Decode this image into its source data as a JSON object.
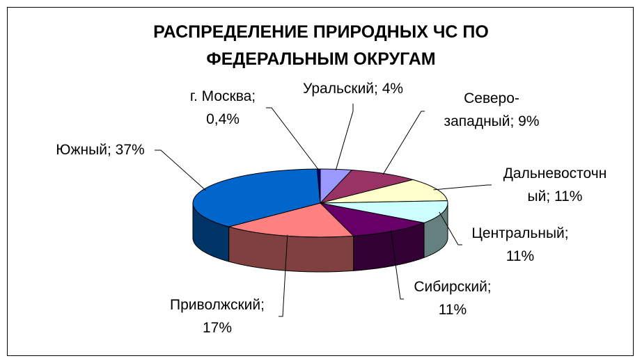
{
  "chart_data": {
    "type": "pie",
    "title_lines": [
      "РАСПРЕДЕЛЕНИЕ ПРИРОДНЫХ ЧС ПО",
      "ФЕДЕРАЛЬНЫМ ОКРУГАМ"
    ],
    "style": "3d-pie",
    "slices": [
      {
        "name": "Уральский",
        "value": 4,
        "value_label": "4%",
        "color": "#9999ff",
        "label_lines": [
          "Уральский; 4%"
        ]
      },
      {
        "name": "Северо-западный",
        "value": 9,
        "value_label": "9%",
        "color": "#993366",
        "label_lines": [
          "Северо-",
          "западный; 9%"
        ]
      },
      {
        "name": "Дальневосточный",
        "value": 11,
        "value_label": "11%",
        "color": "#ffffcc",
        "label_lines": [
          "Дальневосточн",
          "ый; 11%"
        ]
      },
      {
        "name": "Центральный",
        "value": 11,
        "value_label": "11%",
        "color": "#ccffff",
        "label_lines": [
          "Центральный;",
          "11%"
        ]
      },
      {
        "name": "Сибирский",
        "value": 11,
        "value_label": "11%",
        "color": "#660066",
        "label_lines": [
          "Сибирский;",
          "11%"
        ]
      },
      {
        "name": "Приволжский",
        "value": 17,
        "value_label": "17%",
        "color": "#ff8080",
        "label_lines": [
          "Приволжский;",
          "17%"
        ]
      },
      {
        "name": "Южный",
        "value": 37,
        "value_label": "37%",
        "color": "#0066cc",
        "label_lines": [
          "Южный; 37%"
        ]
      },
      {
        "name": "г. Москва",
        "value": 0.4,
        "value_label": "0,4%",
        "color": "#000080",
        "label_lines": [
          "г. Москва;",
          "0,4%"
        ]
      }
    ]
  }
}
